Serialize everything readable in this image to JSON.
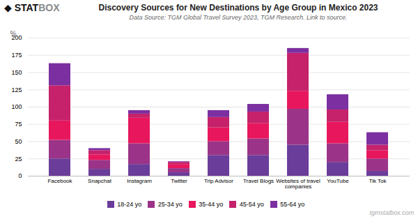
{
  "chart_data": {
    "type": "bar",
    "stacked": true,
    "title": "Discovery Sources for New Destinations by Age Group in Mexico 2023",
    "subtitle": "Data Source: TGM Global Travel Survey 2023, TGM Research. Link to source.",
    "ylabel": "%",
    "annotations": [
      "◆",
      "STAT",
      "BOX",
      "tgmstatbox.com"
    ],
    "categories": [
      "Facebook",
      "Snapchat",
      "Instagram",
      "Twitter",
      "Trip Advisor",
      "Travel Blogs",
      "Websites of travel\ncompanies",
      "YouTube",
      "Tik Tok"
    ],
    "series": [
      {
        "name": "18-24 yo",
        "color": "#6a3d9a",
        "values": [
          25,
          10,
          17,
          5,
          30,
          30,
          45,
          20,
          7
        ]
      },
      {
        "name": "25-34 yo",
        "color": "#9b3488",
        "values": [
          27,
          13,
          30,
          6,
          20,
          24,
          52,
          27,
          18
        ]
      },
      {
        "name": "35-44 yo",
        "color": "#e8175d",
        "values": [
          28,
          8,
          37,
          6,
          20,
          22,
          26,
          31,
          12
        ]
      },
      {
        "name": "45-54 yo",
        "color": "#c5226b",
        "values": [
          51,
          6,
          6,
          3,
          15,
          17,
          55,
          18,
          8
        ]
      },
      {
        "name": "55-64 yo",
        "color": "#7b2fa0",
        "values": [
          32,
          3,
          5,
          1,
          10,
          11,
          7,
          22,
          18
        ]
      }
    ],
    "ylim": [
      0,
      200
    ],
    "yticks": [
      0,
      25,
      50,
      75,
      100,
      125,
      150,
      175,
      200
    ],
    "grid": true,
    "legend": "bottom"
  }
}
